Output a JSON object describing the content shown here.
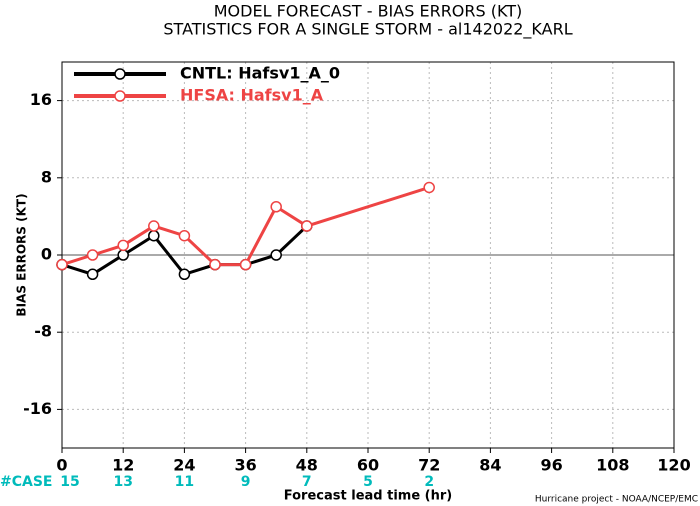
{
  "chart_data": {
    "type": "line",
    "title": "MODEL FORECAST - BIAS ERRORS (KT)",
    "subtitle": "STATISTICS FOR A SINGLE STORM - al142022_KARL",
    "xlabel": "Forecast lead time (hr)",
    "ylabel": "BIAS ERRORS (KT)",
    "footer": "Hurricane project - NOAA/NCEP/EMC",
    "x": [
      0,
      6,
      12,
      18,
      24,
      30,
      36,
      42,
      48,
      72
    ],
    "series": [
      {
        "name": "CNTL: Hafsv1_A_0",
        "color": "#000000",
        "values": [
          -1,
          -2,
          0,
          2,
          -2,
          -1,
          -1,
          0,
          3,
          null
        ]
      },
      {
        "name": "HFSA: Hafsv1_A",
        "color": "#ee4444",
        "values": [
          -1,
          0,
          1,
          3,
          2,
          -1,
          -1,
          5,
          3,
          7
        ]
      }
    ],
    "xlim": [
      0,
      120
    ],
    "xticks": [
      0,
      12,
      24,
      36,
      48,
      60,
      72,
      84,
      96,
      108,
      120
    ],
    "ylim": [
      -20,
      20
    ],
    "yticks": [
      -16,
      -8,
      0,
      8,
      16
    ],
    "grid": true,
    "legend": "upper-left",
    "cases": {
      "label": "#CASE",
      "color": "#00bbbb",
      "x": [
        0,
        12,
        24,
        36,
        48,
        60,
        72
      ],
      "values": [
        15,
        13,
        11,
        9,
        7,
        5,
        2
      ]
    }
  }
}
